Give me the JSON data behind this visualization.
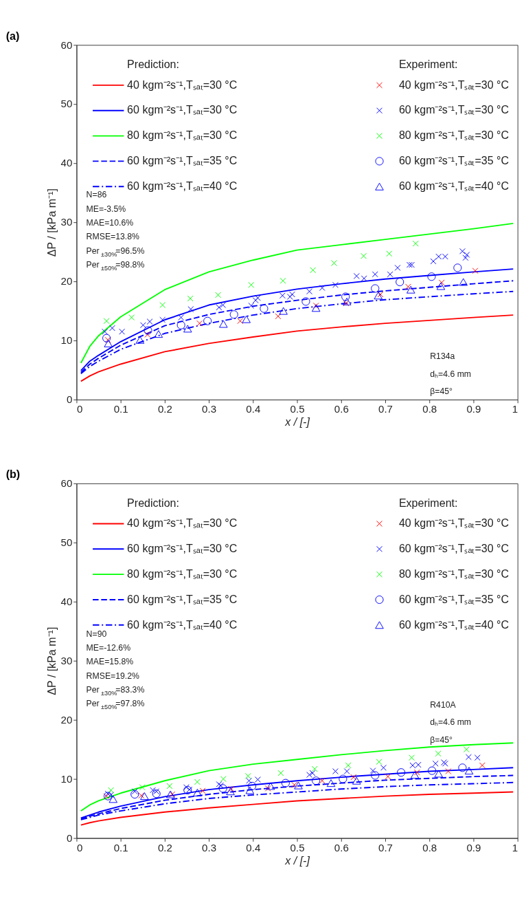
{
  "chart_data": [
    {
      "type": "line",
      "title": "(a)",
      "xlabel": "x / [-]",
      "ylabel": "ΔP / [kPa m⁻¹]",
      "xlim": [
        0,
        1
      ],
      "xticks": [
        0,
        0.1,
        0.2,
        0.3,
        0.4,
        0.5,
        0.6,
        0.7,
        0.8,
        0.9,
        1
      ],
      "ylim": [
        0,
        60
      ],
      "yticks": [
        0,
        10,
        20,
        30,
        40,
        50,
        60
      ],
      "grid": false,
      "legend": "top",
      "annotations": [
        "Prediction:",
        "Experiment:",
        "N=86",
        "ME=-3.5%",
        "MAE=10.6%",
        "RMSE=13.8%",
        "Per$_{±30%}$=96.5%",
        "Per$_{±50%}$=98.8%",
        "R134a",
        "dₕ=4.6 mm",
        "β=45°"
      ],
      "series": [
        {
          "name": "40 kgm⁻²s⁻¹,Tₛₐₜ=30 °C",
          "line_style": "solid",
          "color": "#ff0000",
          "x": [
            0.01,
            0.03,
            0.05,
            0.1,
            0.2,
            0.3,
            0.4,
            0.5,
            0.6,
            0.7,
            0.8,
            0.9,
            0.99
          ],
          "values": [
            3.1,
            4.0,
            4.7,
            6.0,
            8.1,
            9.5,
            10.6,
            11.6,
            12.3,
            12.9,
            13.4,
            13.9,
            14.3
          ]
        },
        {
          "name": "60 kgm⁻²s⁻¹,Tₛₐₜ=30 °C",
          "line_style": "solid",
          "color": "#0000ff",
          "x": [
            0.01,
            0.03,
            0.05,
            0.1,
            0.2,
            0.3,
            0.4,
            0.5,
            0.6,
            0.7,
            0.8,
            0.9,
            0.99
          ],
          "values": [
            4.9,
            6.5,
            7.5,
            9.8,
            13.5,
            16.0,
            17.5,
            18.7,
            19.6,
            20.4,
            21.0,
            21.6,
            22.1
          ]
        },
        {
          "name": "80 kgm⁻²s⁻¹,Tₛₐₜ=30 °C",
          "line_style": "solid",
          "color": "#00ff00",
          "x": [
            0.01,
            0.03,
            0.05,
            0.1,
            0.2,
            0.3,
            0.4,
            0.5,
            0.6,
            0.7,
            0.8,
            0.9,
            0.99
          ],
          "values": [
            6.2,
            9.0,
            10.8,
            14.0,
            18.6,
            21.6,
            23.6,
            25.3,
            26.2,
            27.1,
            28.0,
            28.9,
            29.8
          ]
        },
        {
          "name": "60 kgm⁻²s⁻¹,Tₛₐₜ=35 °C",
          "line_style": "dashed",
          "color": "#0000ff",
          "x": [
            0.01,
            0.03,
            0.05,
            0.1,
            0.2,
            0.3,
            0.4,
            0.5,
            0.6,
            0.7,
            0.8,
            0.9,
            0.99
          ],
          "values": [
            4.6,
            6.0,
            7.0,
            9.2,
            12.5,
            14.4,
            15.8,
            16.8,
            17.7,
            18.4,
            19.0,
            19.6,
            20.1
          ]
        },
        {
          "name": "60 kgm⁻²s⁻¹,Tₛₐₜ=40 °C",
          "line_style": "dashdot",
          "color": "#0000ff",
          "x": [
            0.01,
            0.03,
            0.05,
            0.1,
            0.2,
            0.3,
            0.4,
            0.5,
            0.6,
            0.7,
            0.8,
            0.9,
            0.99
          ],
          "values": [
            4.4,
            5.6,
            6.5,
            8.5,
            11.2,
            12.9,
            14.3,
            15.4,
            16.2,
            16.9,
            17.4,
            17.9,
            18.3
          ]
        },
        {
          "name": "40 kgm⁻²s⁻¹,Tₛₐₜ=30 °C",
          "type": "scatter",
          "marker": "cross",
          "color": "#ff0000",
          "x": [
            0.071,
            0.161,
            0.279,
            0.371,
            0.457,
            0.543,
            0.611,
            0.689,
            0.752,
            0.828,
            0.904
          ],
          "values": [
            10.1,
            11.0,
            12.9,
            13.3,
            14.1,
            15.9,
            16.3,
            17.8,
            19.1,
            19.8,
            21.8
          ]
        },
        {
          "name": "60 kgm⁻²s⁻¹,Tₛₐₜ=30 °C",
          "type": "scatter",
          "marker": "cross",
          "color": "#0000ff",
          "x": [
            0.064,
            0.081,
            0.103,
            0.151,
            0.166,
            0.195,
            0.237,
            0.259,
            0.323,
            0.332,
            0.396,
            0.406,
            0.411,
            0.467,
            0.484,
            0.489,
            0.528,
            0.557,
            0.587,
            0.635,
            0.652,
            0.677,
            0.711,
            0.728,
            0.755,
            0.76,
            0.809,
            0.821,
            0.836,
            0.875,
            0.885,
            0.882
          ],
          "values": [
            11.5,
            12.1,
            11.5,
            12.6,
            13.2,
            13.5,
            13.9,
            15.3,
            15.6,
            16.0,
            15.9,
            16.8,
            17.2,
            17.6,
            17.4,
            17.8,
            18.3,
            18.9,
            19.4,
            20.9,
            20.5,
            21.2,
            21.2,
            22.3,
            22.8,
            22.8,
            23.4,
            24.2,
            24.2,
            25.1,
            24.5,
            24.0
          ]
        },
        {
          "name": "80 kgm⁻²s⁻¹,Tₛₐₜ=30 °C",
          "type": "scatter",
          "marker": "cross",
          "color": "#00ff00",
          "x": [
            0.068,
            0.125,
            0.195,
            0.258,
            0.321,
            0.396,
            0.468,
            0.536,
            0.584,
            0.651,
            0.709,
            0.769
          ],
          "values": [
            13.3,
            13.9,
            16.0,
            17.1,
            17.7,
            19.4,
            20.1,
            21.9,
            23.1,
            24.3,
            24.7,
            26.4
          ]
        },
        {
          "name": "60 kgm⁻²s⁻¹,Tₛₐₜ=35 °C",
          "type": "scatter",
          "marker": "circle",
          "color": "#0000ff",
          "x": [
            0.068,
            0.162,
            0.237,
            0.297,
            0.357,
            0.425,
            0.52,
            0.61,
            0.677,
            0.733,
            0.805,
            0.864
          ],
          "values": [
            10.4,
            11.7,
            12.6,
            13.3,
            14.4,
            15.4,
            16.6,
            17.4,
            18.8,
            19.9,
            20.8,
            22.3
          ]
        },
        {
          "name": "60 kgm⁻²s⁻¹,Tₛₐₜ=40 °C",
          "type": "scatter",
          "marker": "triangle",
          "color": "#0000ff",
          "x": [
            0.072,
            0.144,
            0.186,
            0.252,
            0.333,
            0.385,
            0.469,
            0.543,
            0.613,
            0.684,
            0.758,
            0.826,
            0.877
          ],
          "values": [
            9.5,
            10.1,
            11.1,
            12.0,
            12.8,
            13.6,
            15.0,
            15.5,
            16.6,
            17.6,
            18.6,
            19.2,
            19.9
          ]
        }
      ]
    },
    {
      "type": "line",
      "title": "(b)",
      "xlabel": "x / [-]",
      "ylabel": "ΔP / [kPa m⁻¹]",
      "xlim": [
        0,
        1
      ],
      "xticks": [
        0,
        0.1,
        0.2,
        0.3,
        0.4,
        0.5,
        0.6,
        0.7,
        0.8,
        0.9,
        1
      ],
      "ylim": [
        0,
        60
      ],
      "yticks": [
        0,
        10,
        20,
        30,
        40,
        50,
        60
      ],
      "grid": false,
      "legend": "top",
      "annotations": [
        "Prediction:",
        "Experiment:",
        "N=90",
        "ME=-12.6%",
        "MAE=15.8%",
        "RMSE=19.2%",
        "Per$_{±30%}$=83.3%",
        "Per$_{±50%}$=97.8%",
        "R410A",
        "dₕ=4.6 mm",
        "β=45°"
      ],
      "series": [
        {
          "name": "40 kgm⁻²s⁻¹,Tₛₐₜ=30 °C",
          "line_style": "solid",
          "color": "#ff0000",
          "x": [
            0.01,
            0.03,
            0.05,
            0.1,
            0.2,
            0.3,
            0.4,
            0.5,
            0.6,
            0.7,
            0.8,
            0.9,
            0.99
          ],
          "values": [
            2.2,
            2.6,
            2.9,
            3.5,
            4.4,
            5.1,
            5.7,
            6.3,
            6.7,
            7.1,
            7.4,
            7.6,
            7.8
          ]
        },
        {
          "name": "60 kgm⁻²s⁻¹,Tₛₐₜ=30 °C",
          "line_style": "solid",
          "color": "#0000ff",
          "x": [
            0.01,
            0.03,
            0.05,
            0.1,
            0.2,
            0.3,
            0.4,
            0.5,
            0.6,
            0.7,
            0.8,
            0.9,
            0.99
          ],
          "values": [
            3.4,
            3.9,
            4.4,
            5.4,
            7.0,
            8.2,
            9.0,
            9.7,
            10.3,
            10.8,
            11.3,
            11.6,
            11.9
          ]
        },
        {
          "name": "80 kgm⁻²s⁻¹,Tₛₐₜ=30 °C",
          "line_style": "solid",
          "color": "#00ff00",
          "x": [
            0.01,
            0.03,
            0.05,
            0.1,
            0.2,
            0.3,
            0.4,
            0.5,
            0.6,
            0.7,
            0.8,
            0.9,
            0.99
          ],
          "values": [
            4.6,
            5.6,
            6.3,
            7.6,
            9.7,
            11.4,
            12.5,
            13.3,
            14.1,
            14.8,
            15.4,
            15.8,
            16.1
          ]
        },
        {
          "name": "60 kgm⁻²s⁻¹,Tₛₐₜ=35 °C",
          "line_style": "dashed",
          "color": "#0000ff",
          "x": [
            0.01,
            0.03,
            0.05,
            0.1,
            0.2,
            0.3,
            0.4,
            0.5,
            0.6,
            0.7,
            0.8,
            0.9,
            0.99
          ],
          "values": [
            3.3,
            3.7,
            4.1,
            5.0,
            6.4,
            7.4,
            8.2,
            8.8,
            9.3,
            9.8,
            10.1,
            10.4,
            10.6
          ]
        },
        {
          "name": "60 kgm⁻²s⁻¹,Tₛₐₜ=40 °C",
          "line_style": "dashdot",
          "color": "#0000ff",
          "x": [
            0.01,
            0.03,
            0.05,
            0.1,
            0.2,
            0.3,
            0.4,
            0.5,
            0.6,
            0.7,
            0.8,
            0.9,
            0.99
          ],
          "values": [
            3.1,
            3.5,
            3.9,
            4.6,
            5.8,
            6.7,
            7.3,
            7.8,
            8.3,
            8.7,
            9.0,
            9.2,
            9.4
          ]
        },
        {
          "name": "40 kgm⁻²s⁻¹,Tₛₐₜ=30 °C",
          "type": "scatter",
          "marker": "cross",
          "color": "#ff0000",
          "x": [
            0.068,
            0.147,
            0.217,
            0.286,
            0.351,
            0.434,
            0.494,
            0.557,
            0.628,
            0.706,
            0.772,
            0.843,
            0.92
          ],
          "values": [
            7.1,
            7.2,
            7.4,
            8.0,
            8.3,
            8.4,
            9.0,
            9.7,
            10.3,
            10.4,
            11.1,
            11.3,
            12.3
          ]
        },
        {
          "name": "60 kgm⁻²s⁻¹,Tₛₐₜ=30 °C",
          "type": "scatter",
          "marker": "cross",
          "color": "#0000ff",
          "x": [
            0.071,
            0.078,
            0.132,
            0.173,
            0.181,
            0.249,
            0.256,
            0.323,
            0.327,
            0.391,
            0.411,
            0.528,
            0.535,
            0.587,
            0.613,
            0.672,
            0.696,
            0.762,
            0.775,
            0.814,
            0.833,
            0.836,
            0.889,
            0.909
          ],
          "values": [
            7.5,
            7.3,
            7.9,
            8.1,
            7.9,
            8.6,
            8.2,
            9.1,
            8.9,
            9.7,
            9.9,
            10.7,
            11.0,
            11.3,
            11.3,
            11.4,
            11.9,
            12.3,
            12.4,
            12.6,
            12.8,
            12.6,
            13.7,
            13.6
          ]
        },
        {
          "name": "80 kgm⁻²s⁻¹,Tₛₐₜ=30 °C",
          "type": "scatter",
          "marker": "cross",
          "color": "#00ff00",
          "x": [
            0.078,
            0.149,
            0.211,
            0.274,
            0.333,
            0.389,
            0.463,
            0.54,
            0.616,
            0.686,
            0.76,
            0.82,
            0.884
          ],
          "values": [
            8.1,
            8.6,
            8.8,
            9.5,
            10.0,
            10.5,
            11.0,
            11.7,
            12.3,
            12.9,
            13.6,
            14.3,
            15.0
          ]
        },
        {
          "name": "60 kgm⁻²s⁻¹,Tₛₐₜ=35 °C",
          "type": "scatter",
          "marker": "circle",
          "color": "#0000ff",
          "x": [
            0.071,
            0.132,
            0.181,
            0.252,
            0.332,
            0.398,
            0.474,
            0.543,
            0.604,
            0.677,
            0.736,
            0.806,
            0.875
          ],
          "values": [
            7.1,
            7.4,
            7.5,
            8.1,
            8.4,
            8.8,
            9.3,
            9.7,
            10.0,
            10.6,
            11.1,
            11.4,
            11.9
          ]
        },
        {
          "name": "60 kgm⁻²s⁻¹,Tₛₐₜ=40 °C",
          "type": "scatter",
          "marker": "triangle",
          "color": "#0000ff",
          "x": [
            0.083,
            0.154,
            0.213,
            0.274,
            0.349,
            0.393,
            0.44,
            0.503,
            0.577,
            0.635,
            0.767,
            0.821,
            0.89
          ],
          "values": [
            6.6,
            7.1,
            7.4,
            7.7,
            7.9,
            8.1,
            8.8,
            8.9,
            9.3,
            9.7,
            10.7,
            10.9,
            11.4
          ]
        }
      ]
    }
  ]
}
